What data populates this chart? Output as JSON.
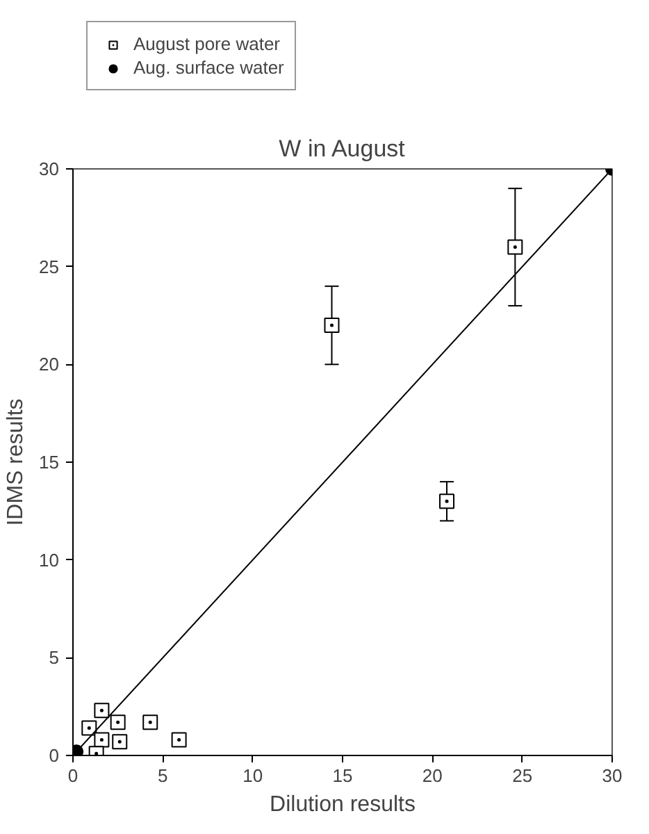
{
  "chart_data": {
    "type": "scatter",
    "title": "W in August",
    "xlabel": "Dilution results",
    "ylabel": "IDMS results",
    "xlim": [
      0,
      30
    ],
    "ylim": [
      0,
      30
    ],
    "xticks": [
      0,
      5,
      10,
      15,
      20,
      25,
      30
    ],
    "yticks": [
      0,
      5,
      10,
      15,
      20,
      25,
      30
    ],
    "grid": false,
    "legend": "top",
    "series": [
      {
        "name": "August pore water",
        "color": "#000000",
        "marker": "square",
        "x": [
          14.4,
          24.6,
          20.8,
          1.6,
          0.9,
          2.1,
          2.5,
          1.6,
          2.6,
          4.3,
          5.9,
          1.3
        ],
        "values": [
          22,
          26,
          13,
          2.3,
          1.4,
          null,
          1.7,
          0.8,
          0.7,
          1.7,
          0.8,
          0.1
        ],
        "errors": [
          [
            20,
            24
          ],
          [
            23,
            29
          ],
          [
            12,
            14
          ],
          null,
          null,
          null,
          null,
          null,
          null,
          null,
          null,
          null
        ]
      },
      {
        "name": "Aug. surface water",
        "color": "#000000",
        "marker": "circle",
        "x": [
          0.2,
          30
        ],
        "values": [
          0.2,
          30
        ]
      },
      {
        "type": "line",
        "marker": "none",
        "color": "#000000",
        "x": [
          0,
          30
        ],
        "values": [
          0,
          30
        ]
      }
    ]
  }
}
